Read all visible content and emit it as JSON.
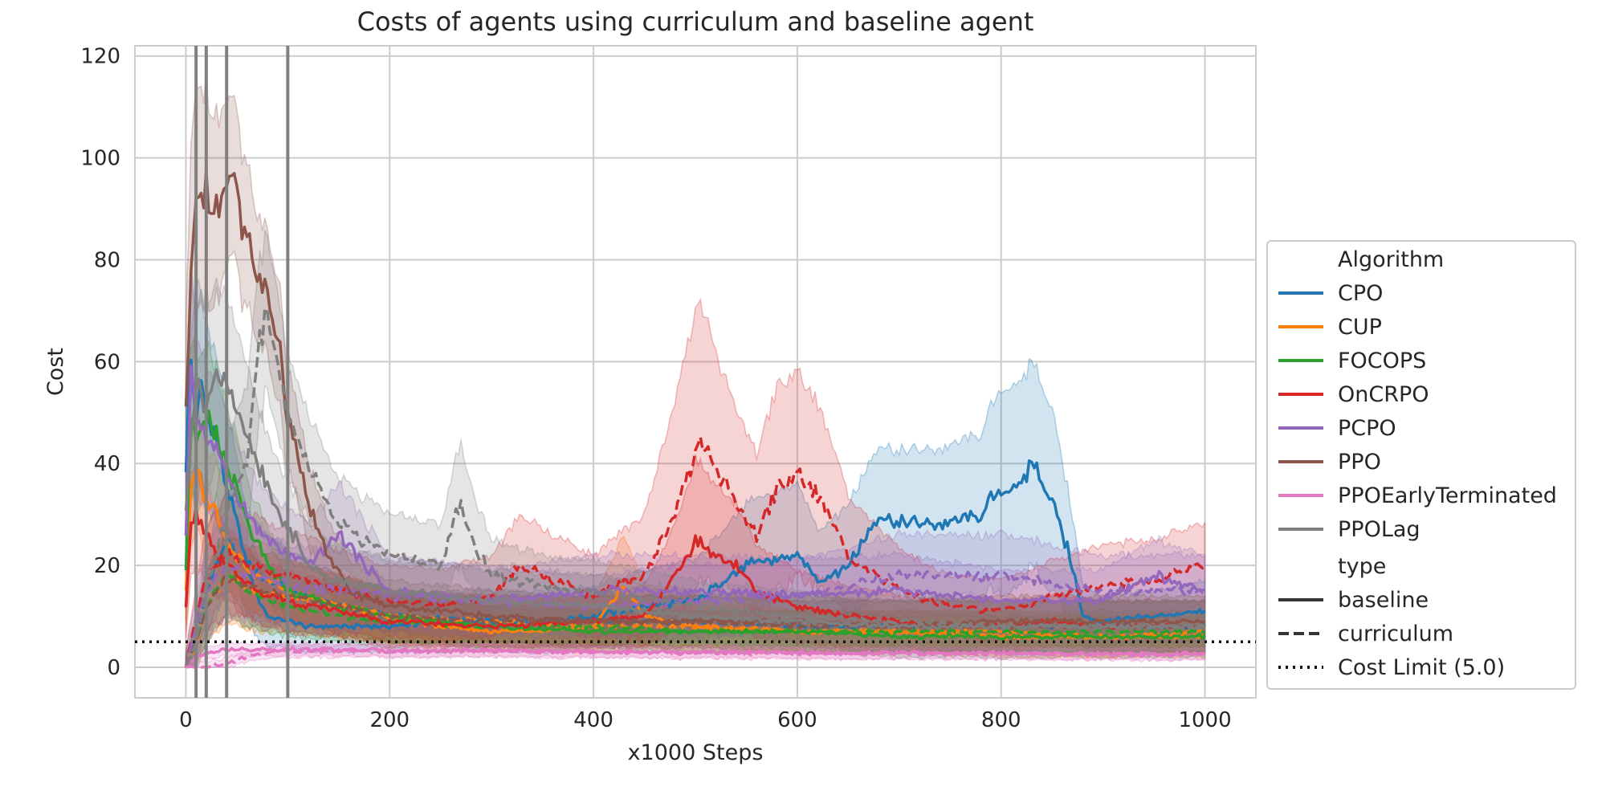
{
  "chart_data": {
    "type": "line",
    "title": "Costs of agents using curriculum and baseline agent",
    "xlabel": "x1000 Steps",
    "ylabel": "Cost",
    "xlim": [
      -50,
      1050
    ],
    "ylim": [
      -6,
      122
    ],
    "xticks": [
      0,
      200,
      400,
      600,
      800,
      1000
    ],
    "yticks": [
      0,
      20,
      40,
      60,
      80,
      100,
      120
    ],
    "grid": true,
    "legend_position": "right",
    "legend": {
      "title_algorithm": "Algorithm",
      "title_type": "type",
      "type_entries": [
        "baseline",
        "curriculum",
        "Cost Limit (5.0)"
      ]
    },
    "cost_limit": {
      "label": "Cost Limit (5.0)",
      "value": 5.0
    },
    "curriculum_stage_lines": [
      10,
      20,
      40,
      100
    ],
    "colors": {
      "CPO": "#1f77b4",
      "CUP": "#ff7f0e",
      "FOCOPS": "#2ca02c",
      "OnCRPO": "#d62728",
      "PCPO": "#9467bd",
      "PPO": "#8c564b",
      "PPOEarlyTerminated": "#e377c2",
      "PPOLag": "#7f7f7f"
    },
    "series": [
      {
        "name": "CPO",
        "type": "baseline",
        "x": [
          0,
          5,
          10,
          15,
          20,
          30,
          40,
          50,
          60,
          70,
          80,
          100,
          120,
          150,
          200,
          250,
          300,
          350,
          400,
          450,
          500,
          550,
          600,
          620,
          650,
          680,
          700,
          750,
          780,
          800,
          820,
          830,
          850,
          870,
          880,
          900,
          950,
          1000
        ],
        "y": [
          40,
          60,
          48,
          55,
          50,
          45,
          35,
          28,
          20,
          14,
          10,
          9,
          8,
          8,
          8,
          9,
          9,
          9,
          10,
          12,
          13,
          20,
          22,
          17,
          20,
          30,
          28,
          28,
          30,
          35,
          36,
          40,
          33,
          20,
          10,
          9,
          10,
          11
        ],
        "band": [
          12,
          20,
          20,
          18,
          18,
          16,
          15,
          12,
          10,
          8,
          6,
          5,
          5,
          5,
          5,
          6,
          6,
          6,
          6,
          7,
          8,
          12,
          14,
          10,
          12,
          14,
          14,
          15,
          16,
          20,
          20,
          20,
          18,
          10,
          6,
          5,
          5,
          6
        ]
      },
      {
        "name": "CPO",
        "type": "curriculum",
        "x": [
          0,
          10,
          20,
          40,
          60,
          100,
          150,
          200,
          300,
          400,
          500,
          600,
          700,
          800,
          900,
          1000
        ],
        "y": [
          0,
          5,
          15,
          25,
          20,
          15,
          12,
          10,
          9,
          9,
          9,
          8,
          8,
          8,
          8,
          8
        ],
        "band": [
          2,
          4,
          8,
          10,
          10,
          8,
          6,
          5,
          5,
          5,
          5,
          5,
          5,
          5,
          5,
          5
        ]
      },
      {
        "name": "CUP",
        "type": "baseline",
        "x": [
          0,
          5,
          10,
          20,
          30,
          40,
          50,
          70,
          100,
          150,
          200,
          250,
          300,
          350,
          400,
          430,
          450,
          500,
          600,
          700,
          800,
          900,
          1000
        ],
        "y": [
          15,
          35,
          38,
          33,
          30,
          25,
          22,
          18,
          15,
          12,
          10,
          8,
          7,
          7,
          8,
          16,
          10,
          8,
          7,
          7,
          6,
          6,
          6
        ],
        "band": [
          8,
          12,
          12,
          10,
          10,
          9,
          8,
          7,
          6,
          6,
          5,
          5,
          4,
          4,
          5,
          10,
          6,
          5,
          4,
          4,
          4,
          4,
          4
        ]
      },
      {
        "name": "CUP",
        "type": "curriculum",
        "x": [
          0,
          10,
          20,
          40,
          60,
          100,
          150,
          200,
          300,
          400,
          500,
          600,
          700,
          800,
          900,
          1000
        ],
        "y": [
          0,
          4,
          12,
          18,
          15,
          14,
          12,
          10,
          9,
          8,
          8,
          7,
          7,
          7,
          6,
          7
        ],
        "band": [
          2,
          4,
          7,
          9,
          8,
          7,
          6,
          5,
          5,
          5,
          4,
          4,
          4,
          4,
          4,
          4
        ]
      },
      {
        "name": "FOCOPS",
        "type": "baseline",
        "x": [
          0,
          5,
          10,
          20,
          30,
          40,
          50,
          60,
          80,
          100,
          150,
          200,
          300,
          400,
          500,
          600,
          700,
          800,
          900,
          1000
        ],
        "y": [
          20,
          50,
          45,
          48,
          45,
          40,
          35,
          28,
          20,
          15,
          12,
          10,
          8,
          7,
          7,
          7,
          6,
          6,
          6,
          6
        ],
        "band": [
          10,
          15,
          15,
          14,
          13,
          12,
          10,
          8,
          7,
          6,
          5,
          5,
          4,
          4,
          4,
          4,
          4,
          4,
          4,
          4
        ]
      },
      {
        "name": "FOCOPS",
        "type": "curriculum",
        "x": [
          0,
          10,
          20,
          40,
          60,
          100,
          150,
          200,
          300,
          400,
          500,
          600,
          700,
          800,
          900,
          1000
        ],
        "y": [
          0,
          5,
          12,
          18,
          15,
          12,
          10,
          9,
          8,
          8,
          7,
          7,
          7,
          7,
          7,
          7
        ],
        "band": [
          2,
          4,
          7,
          8,
          7,
          6,
          5,
          5,
          4,
          4,
          4,
          4,
          4,
          4,
          4,
          4
        ]
      },
      {
        "name": "OnCRPO",
        "type": "baseline",
        "x": [
          0,
          5,
          10,
          20,
          30,
          40,
          50,
          70,
          100,
          150,
          200,
          300,
          400,
          450,
          480,
          500,
          520,
          540,
          560,
          600,
          650,
          700,
          750,
          800,
          850,
          900,
          950,
          1000
        ],
        "y": [
          12,
          28,
          30,
          26,
          22,
          20,
          18,
          15,
          13,
          11,
          9,
          8,
          9,
          10,
          18,
          25,
          22,
          20,
          15,
          12,
          10,
          9,
          8,
          8,
          9,
          8,
          8,
          8
        ],
        "band": [
          6,
          10,
          10,
          9,
          8,
          7,
          7,
          6,
          6,
          5,
          5,
          4,
          5,
          6,
          10,
          16,
          14,
          12,
          9,
          7,
          6,
          5,
          5,
          5,
          5,
          5,
          5,
          5
        ]
      },
      {
        "name": "OnCRPO",
        "type": "curriculum",
        "x": [
          0,
          10,
          20,
          40,
          60,
          100,
          150,
          200,
          250,
          300,
          330,
          350,
          400,
          450,
          480,
          500,
          510,
          530,
          560,
          580,
          600,
          620,
          650,
          700,
          750,
          800,
          850,
          900,
          950,
          1000
        ],
        "y": [
          0,
          10,
          18,
          22,
          20,
          18,
          15,
          13,
          12,
          14,
          20,
          18,
          14,
          18,
          30,
          42,
          44,
          35,
          26,
          35,
          38,
          34,
          22,
          15,
          12,
          11,
          14,
          16,
          17,
          20
        ],
        "band": [
          3,
          6,
          10,
          12,
          10,
          9,
          8,
          7,
          7,
          8,
          10,
          9,
          8,
          12,
          22,
          28,
          26,
          20,
          16,
          20,
          20,
          18,
          12,
          8,
          6,
          6,
          7,
          8,
          8,
          8
        ]
      },
      {
        "name": "PCPO",
        "type": "baseline",
        "x": [
          0,
          5,
          10,
          20,
          30,
          40,
          60,
          80,
          100,
          120,
          150,
          200,
          300,
          400,
          500,
          600,
          700,
          800,
          900,
          950,
          1000
        ],
        "y": [
          25,
          60,
          50,
          45,
          42,
          38,
          30,
          25,
          22,
          20,
          26,
          15,
          13,
          15,
          15,
          14,
          15,
          13,
          13,
          18,
          15
        ],
        "band": [
          12,
          18,
          16,
          14,
          13,
          12,
          10,
          9,
          9,
          8,
          10,
          7,
          6,
          7,
          7,
          7,
          7,
          6,
          6,
          7,
          7
        ]
      },
      {
        "name": "PCPO",
        "type": "curriculum",
        "x": [
          0,
          10,
          20,
          40,
          60,
          100,
          150,
          200,
          300,
          400,
          500,
          600,
          700,
          800,
          900,
          1000
        ],
        "y": [
          0,
          8,
          15,
          20,
          18,
          16,
          15,
          14,
          13,
          12,
          13,
          14,
          18,
          18,
          15,
          15
        ],
        "band": [
          3,
          6,
          9,
          10,
          9,
          8,
          8,
          7,
          7,
          6,
          7,
          7,
          8,
          8,
          7,
          7
        ]
      },
      {
        "name": "PPO",
        "type": "baseline",
        "x": [
          0,
          5,
          10,
          20,
          30,
          40,
          50,
          60,
          70,
          80,
          90,
          100,
          110,
          120,
          140,
          160,
          200,
          300,
          400,
          500,
          600,
          700,
          800,
          900,
          1000
        ],
        "y": [
          50,
          80,
          90,
          92,
          88,
          93,
          95,
          85,
          75,
          72,
          65,
          48,
          40,
          32,
          22,
          15,
          12,
          10,
          9,
          9,
          9,
          8,
          9,
          9,
          9
        ],
        "band": [
          18,
          25,
          22,
          20,
          18,
          16,
          15,
          14,
          12,
          12,
          12,
          10,
          9,
          8,
          7,
          6,
          5,
          5,
          5,
          5,
          5,
          5,
          5,
          5,
          5
        ]
      },
      {
        "name": "PPO",
        "type": "curriculum",
        "x": [
          0,
          10,
          20,
          40,
          60,
          100,
          150,
          200,
          300,
          400,
          500,
          600,
          700,
          800,
          900,
          1000
        ],
        "y": [
          0,
          5,
          12,
          18,
          16,
          14,
          12,
          10,
          9,
          9,
          9,
          8,
          8,
          8,
          8,
          8
        ],
        "band": [
          2,
          4,
          7,
          8,
          8,
          7,
          6,
          5,
          5,
          5,
          5,
          5,
          5,
          5,
          5,
          5
        ]
      },
      {
        "name": "PPOEarlyTerminated",
        "type": "baseline",
        "x": [
          0,
          10,
          20,
          40,
          60,
          100,
          150,
          200,
          300,
          400,
          500,
          600,
          700,
          800,
          900,
          1000
        ],
        "y": [
          0,
          2,
          3,
          3.5,
          3.5,
          3.5,
          3.4,
          3.3,
          3.2,
          3.0,
          2.9,
          2.8,
          2.8,
          2.7,
          2.6,
          2.6
        ],
        "band": [
          1,
          1,
          1.2,
          1.2,
          1.2,
          1.2,
          1.2,
          1.2,
          1.2,
          1.1,
          1.1,
          1.1,
          1.1,
          1.1,
          1.1,
          1.1
        ]
      },
      {
        "name": "PPOEarlyTerminated",
        "type": "curriculum",
        "x": [
          0,
          10,
          20,
          40,
          60,
          80,
          100,
          150,
          200,
          300,
          400,
          500,
          600,
          700,
          800,
          900,
          1000
        ],
        "y": [
          0,
          0,
          0,
          1,
          2,
          3,
          3.2,
          3.3,
          3.3,
          3.2,
          3.0,
          2.9,
          2.8,
          2.7,
          2.7,
          2.6,
          2.6
        ],
        "band": [
          1,
          1,
          1,
          1,
          1,
          1.2,
          1.2,
          1.2,
          1.2,
          1.2,
          1.1,
          1.1,
          1.1,
          1.1,
          1.1,
          1.1,
          1.1
        ]
      },
      {
        "name": "PPOLag",
        "type": "baseline",
        "x": [
          0,
          5,
          10,
          20,
          30,
          40,
          50,
          60,
          70,
          80,
          90,
          100,
          120,
          150,
          200,
          300,
          400,
          500,
          600,
          700,
          800,
          900,
          1000
        ],
        "y": [
          30,
          45,
          55,
          52,
          58,
          55,
          50,
          45,
          40,
          35,
          30,
          28,
          20,
          17,
          15,
          13,
          12,
          10,
          9,
          8,
          8,
          8,
          8
        ],
        "band": [
          15,
          20,
          20,
          18,
          18,
          17,
          16,
          14,
          12,
          10,
          10,
          9,
          8,
          7,
          6,
          6,
          6,
          5,
          5,
          5,
          5,
          5,
          5
        ]
      },
      {
        "name": "PPOLag",
        "type": "curriculum",
        "x": [
          0,
          10,
          20,
          40,
          60,
          70,
          80,
          90,
          100,
          120,
          150,
          200,
          250,
          270,
          280,
          300,
          350,
          400,
          500,
          600,
          700,
          800,
          900,
          1000
        ],
        "y": [
          0,
          5,
          15,
          30,
          40,
          62,
          68,
          60,
          50,
          40,
          28,
          22,
          20,
          33,
          25,
          18,
          16,
          15,
          12,
          10,
          9,
          8,
          8,
          8
        ],
        "band": [
          3,
          6,
          10,
          14,
          15,
          16,
          15,
          14,
          12,
          10,
          9,
          8,
          8,
          12,
          10,
          7,
          6,
          6,
          5,
          5,
          5,
          5,
          5,
          5
        ]
      }
    ]
  }
}
